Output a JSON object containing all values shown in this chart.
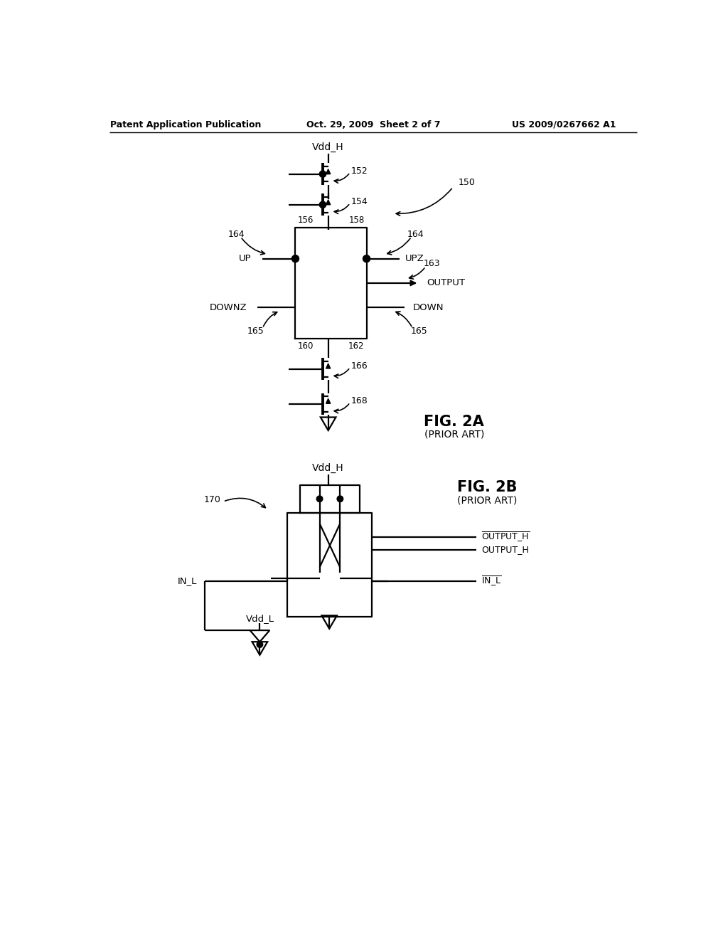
{
  "bg_color": "#ffffff",
  "header_left": "Patent Application Publication",
  "header_center": "Oct. 29, 2009  Sheet 2 of 7",
  "header_right": "US 2009/0267662 A1",
  "fig2a_label": "FIG. 2A",
  "fig2a_sub": "(PRIOR ART)",
  "fig2b_label": "FIG. 2B",
  "fig2b_sub": "(PRIOR ART)"
}
